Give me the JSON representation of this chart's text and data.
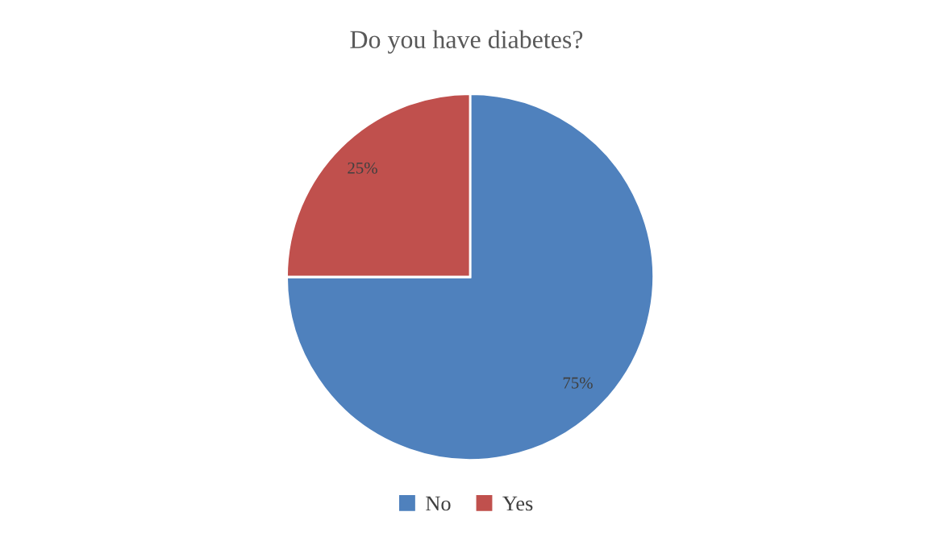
{
  "chart_data": {
    "type": "pie",
    "title": "Do you have diabetes?",
    "categories": [
      "No",
      "Yes"
    ],
    "values": [
      75,
      25
    ],
    "colors": [
      "#4f81bd",
      "#c0504d"
    ],
    "value_labels": [
      "75%",
      "25%"
    ],
    "legend": "bottom"
  }
}
